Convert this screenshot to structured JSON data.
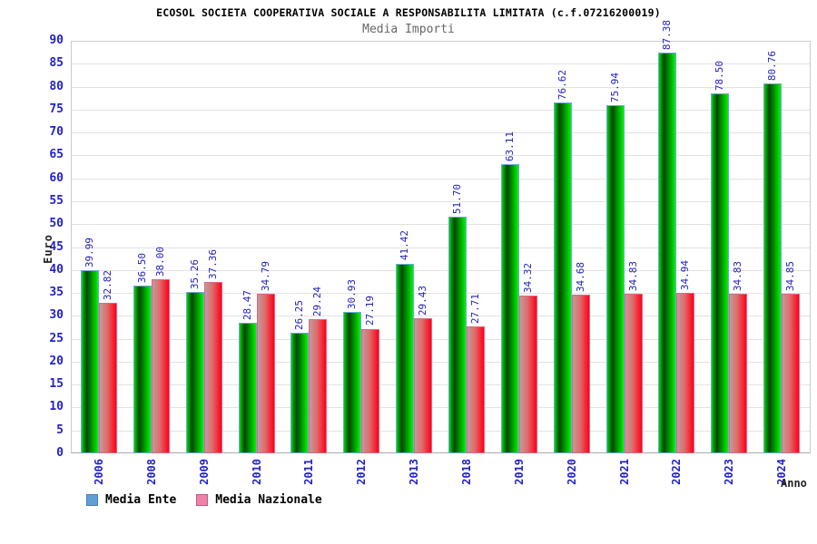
{
  "colors": {
    "legend_ente": "#5f9fd6",
    "legend_ente_border": "#4a7fb5",
    "legend_nazionale": "#ee82a8",
    "legend_nazionale_border": "#c05a85",
    "bar_ente_stroke": "#6fa8dc",
    "bar_nazionale_stroke": "#dd6688",
    "bar_ente_gradient": [
      "#00d400",
      "#004600",
      "#00f400"
    ],
    "bar_nazionale_gradient": [
      "#c29a9a",
      "#e06a6a",
      "#ff0018"
    ],
    "value_label": "#2222bb",
    "axis_text": "#2222cc",
    "band_gray": "#f2f2f2"
  },
  "chart_data": {
    "type": "bar",
    "title": "ECOSOL SOCIETA COOPERATIVA SOCIALE A RESPONSABILITA LIMITATA (c.f.07216200019)",
    "subtitle": "Media Importi",
    "xlabel": "Anno",
    "ylabel": "Euro",
    "ylim": [
      0,
      90
    ],
    "ytick_step": 5,
    "grid": "horizontal-bands",
    "legend_position": "bottom-left",
    "value_label_format": "2-decimals",
    "categories": [
      "2006",
      "2008",
      "2009",
      "2010",
      "2011",
      "2012",
      "2013",
      "2018",
      "2019",
      "2020",
      "2021",
      "2022",
      "2023",
      "2024"
    ],
    "series": [
      {
        "name": "Media Ente",
        "values": [
          39.99,
          36.5,
          35.26,
          28.47,
          26.25,
          30.93,
          41.42,
          51.7,
          63.11,
          76.62,
          75.94,
          87.38,
          78.5,
          80.76
        ]
      },
      {
        "name": "Media Nazionale",
        "values": [
          32.82,
          38.0,
          37.36,
          34.79,
          29.24,
          27.19,
          29.43,
          27.71,
          34.32,
          34.68,
          34.83,
          34.94,
          34.83,
          34.85
        ]
      }
    ]
  }
}
